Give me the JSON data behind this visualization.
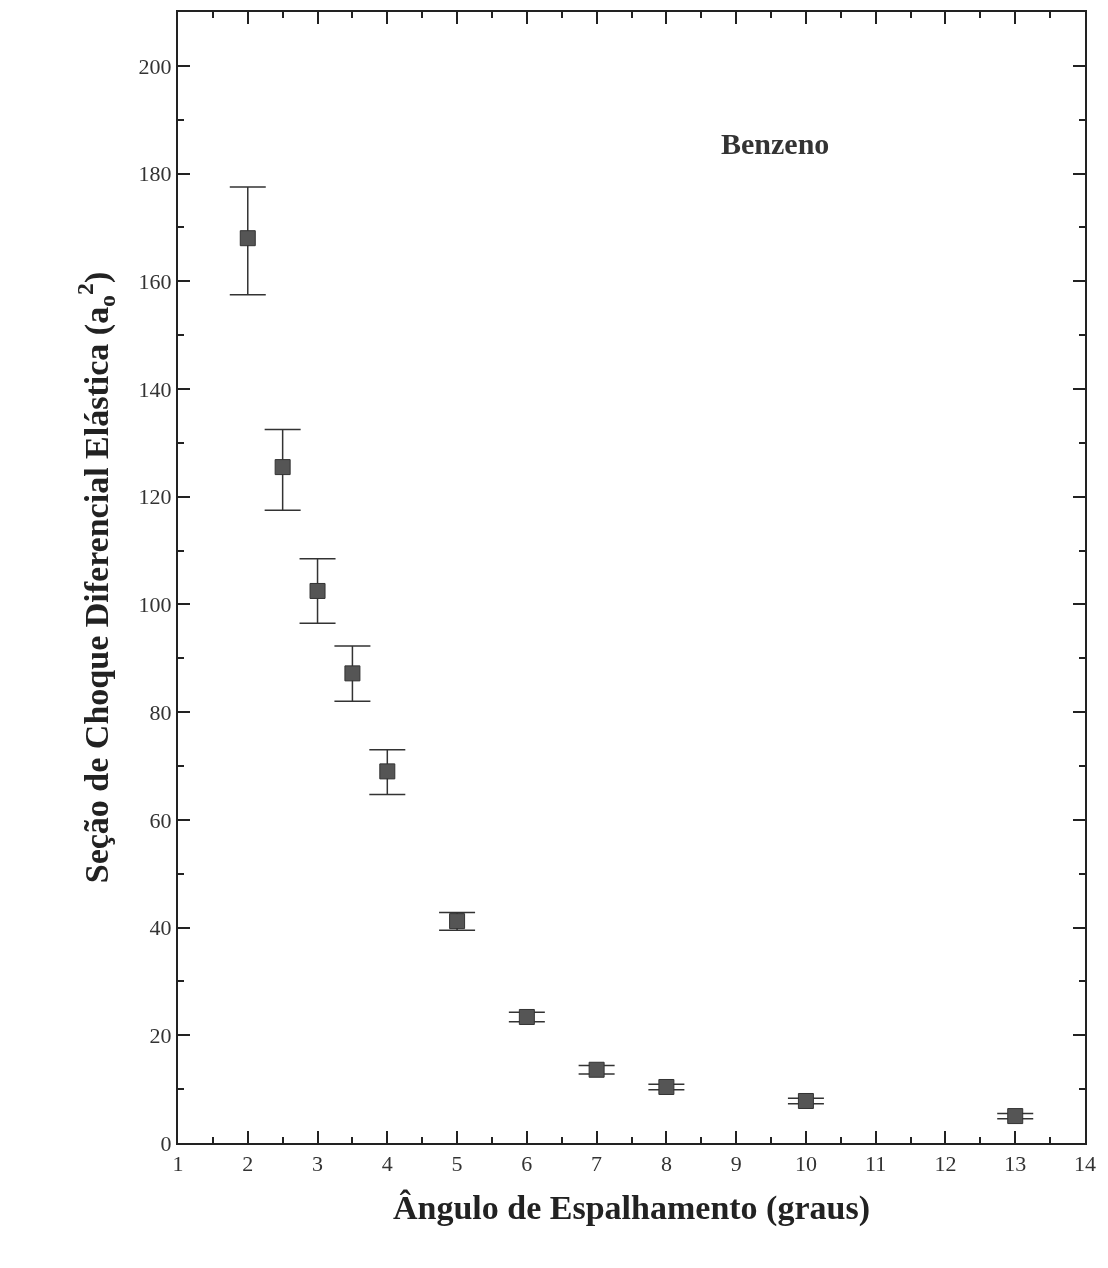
{
  "chart_data": {
    "type": "scatter",
    "xlabel": "Ângulo de Espalhamento (graus)",
    "ylabel": "Seção de Choque Diferencial Elástica (a$_{o}$$^{2}$)",
    "annotations": [
      "Benzeno"
    ],
    "x": [
      2,
      2.5,
      3,
      3.5,
      4,
      5,
      6,
      7,
      8,
      10,
      13
    ],
    "series": [
      {
        "color": "#555555",
        "values": [
          168,
          125.5,
          102.5,
          87.2,
          69,
          41.2,
          23.4,
          13.6,
          10.4,
          7.8,
          5.0
        ],
        "errors": [
          [
            157.5,
            177.5
          ],
          [
            117.5,
            132.5
          ],
          [
            96.5,
            108.5
          ],
          [
            82,
            92.3
          ],
          [
            64.7,
            73
          ],
          [
            39.5,
            42.8
          ],
          [
            22.5,
            24.3
          ],
          [
            12.8,
            14.4
          ],
          [
            9.9,
            10.9
          ],
          [
            7.3,
            8.3
          ],
          [
            4.5,
            5.5
          ]
        ]
      }
    ],
    "xlim": [
      1,
      14
    ],
    "ylim": [
      0,
      210
    ],
    "xticks": [
      1,
      2,
      3,
      4,
      5,
      6,
      7,
      8,
      9,
      10,
      11,
      12,
      13,
      14
    ],
    "yticks": [
      0,
      20,
      40,
      60,
      80,
      100,
      120,
      140,
      160,
      180,
      200
    ],
    "marker": "square",
    "grid": false
  }
}
